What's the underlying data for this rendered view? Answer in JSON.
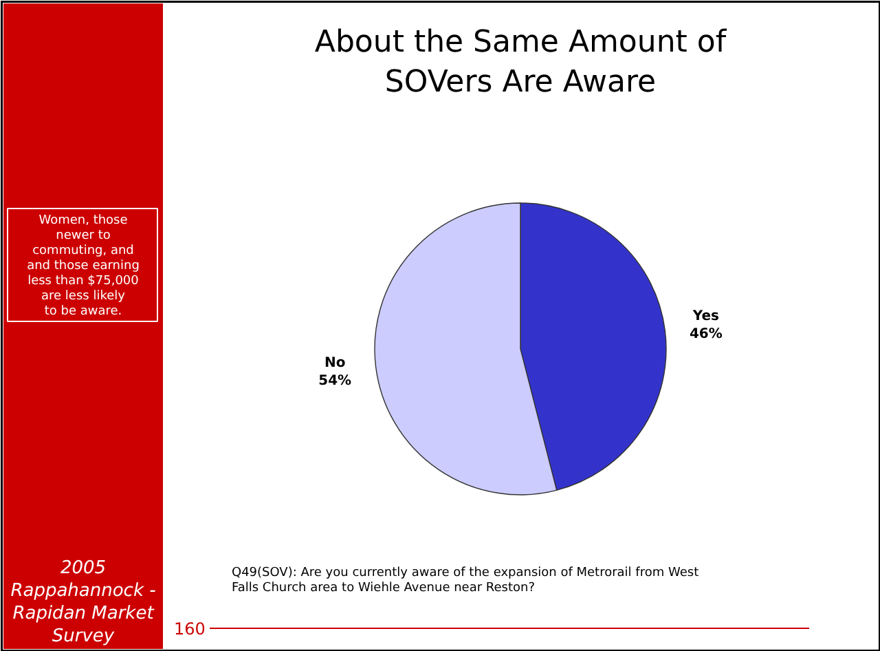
{
  "chart_data": {
    "type": "pie",
    "title": "About the Same Amount of SOVers Are Aware",
    "categories": [
      "Yes",
      "No"
    ],
    "values": [
      46,
      54
    ],
    "colors": [
      "#3333cc",
      "#ccccff"
    ],
    "value_labels": [
      "46%",
      "54%"
    ],
    "annotations": [
      "Women, those newer to commuting, and and those earning less than $75,000 are less likely to be aware.",
      "2005 Rappahannock - Rapidan Market Survey",
      "Q49(SOV): Are you currently aware of the expansion of Metrorail from West Falls Church area to Wiehle Avenue near Reston?",
      "160"
    ]
  }
}
